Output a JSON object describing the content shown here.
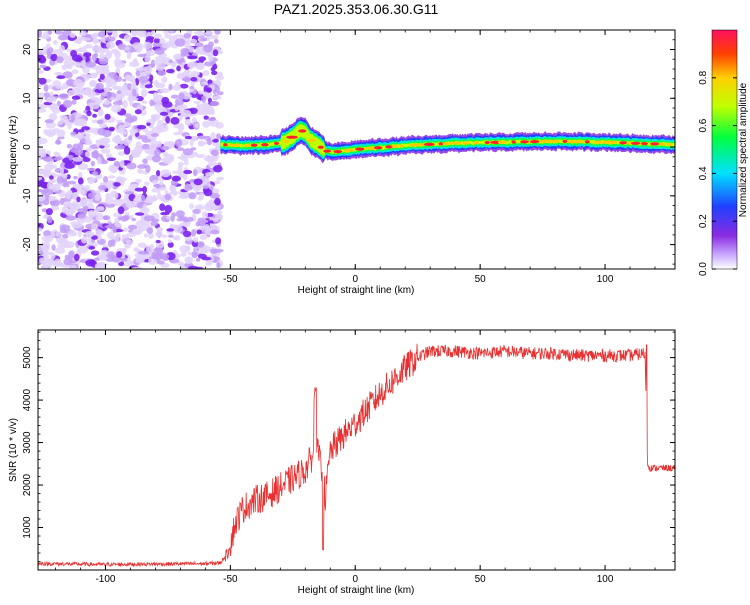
{
  "figure": {
    "title": "PAZ1.2025.353.06.30.G11"
  },
  "colorbar": {
    "label": "Normalized spectral amplitude",
    "ticks": [
      "0.0",
      "0.2",
      "0.4",
      "0.6",
      "0.8"
    ],
    "tick_values": [
      0.0,
      0.2,
      0.4,
      0.6,
      0.8
    ],
    "range": [
      0,
      1
    ],
    "colormap": [
      "#ffffff",
      "#c9a8ff",
      "#8a2be2",
      "#2040ff",
      "#00e0ff",
      "#00ff40",
      "#c0ff00",
      "#ffd000",
      "#ff4000",
      "#ff1060"
    ]
  },
  "chart_data": [
    {
      "type": "heatmap",
      "title": "PAZ1.2025.353.06.30.G11",
      "xlabel": "Height of straight line (km)",
      "ylabel": "Frequency (Hz)",
      "xlim": [
        -127,
        128
      ],
      "ylim": [
        -25,
        24
      ],
      "x_ticks": [
        -100,
        -50,
        0,
        50,
        100
      ],
      "x_tick_labels": [
        "-100",
        "-50",
        "0",
        "50",
        "100"
      ],
      "y_ticks": [
        -20,
        -10,
        0,
        10,
        20
      ],
      "y_tick_labels": [
        "-20",
        "-10",
        "0",
        "10",
        "20"
      ],
      "noise_region_x": [
        -127,
        -54
      ],
      "signal_ridge": {
        "x": [
          -54,
          -45,
          -35,
          -28,
          -24,
          -22,
          -20,
          -18,
          -15,
          -12,
          -8,
          0,
          20,
          40,
          60,
          80,
          100,
          128
        ],
        "frequency": [
          0.5,
          0.3,
          0.5,
          1.0,
          2.5,
          3.5,
          3.0,
          1.5,
          0.5,
          -0.8,
          -1.0,
          -0.5,
          0.3,
          0.8,
          1.0,
          1.2,
          1.0,
          0.5
        ]
      }
    },
    {
      "type": "line",
      "xlabel": "Height of straight line (km)",
      "ylabel": "SNR (10 * v/v)",
      "xlim": [
        -127,
        128
      ],
      "ylim": [
        0,
        5650
      ],
      "x_ticks": [
        -100,
        -50,
        0,
        50,
        100
      ],
      "x_tick_labels": [
        "-100",
        "-50",
        "0",
        "50",
        "100"
      ],
      "y_ticks": [
        1000,
        2000,
        3000,
        4000,
        5000
      ],
      "y_tick_labels": [
        "1000",
        "2000",
        "3000",
        "4000",
        "5000"
      ],
      "series": [
        {
          "name": "SNR",
          "color": "#e83030",
          "x": [
            -127,
            -100,
            -80,
            -60,
            -54,
            -51,
            -48,
            -45,
            -40,
            -35,
            -30,
            -25,
            -20,
            -17,
            -15,
            -13,
            -12,
            -10,
            -5,
            0,
            5,
            10,
            15,
            20,
            25,
            30,
            40,
            50,
            60,
            70,
            80,
            90,
            100,
            110,
            116,
            117,
            118,
            120,
            128
          ],
          "values": [
            150,
            130,
            140,
            150,
            170,
            400,
            1100,
            1450,
            1650,
            1750,
            1950,
            2150,
            2350,
            2700,
            2800,
            2200,
            1700,
            2800,
            3150,
            3450,
            3800,
            4150,
            4450,
            4750,
            5000,
            5150,
            5150,
            5100,
            5150,
            5100,
            5100,
            5050,
            5050,
            5050,
            5100,
            2500,
            2400,
            2400,
            2400
          ]
        }
      ]
    }
  ]
}
